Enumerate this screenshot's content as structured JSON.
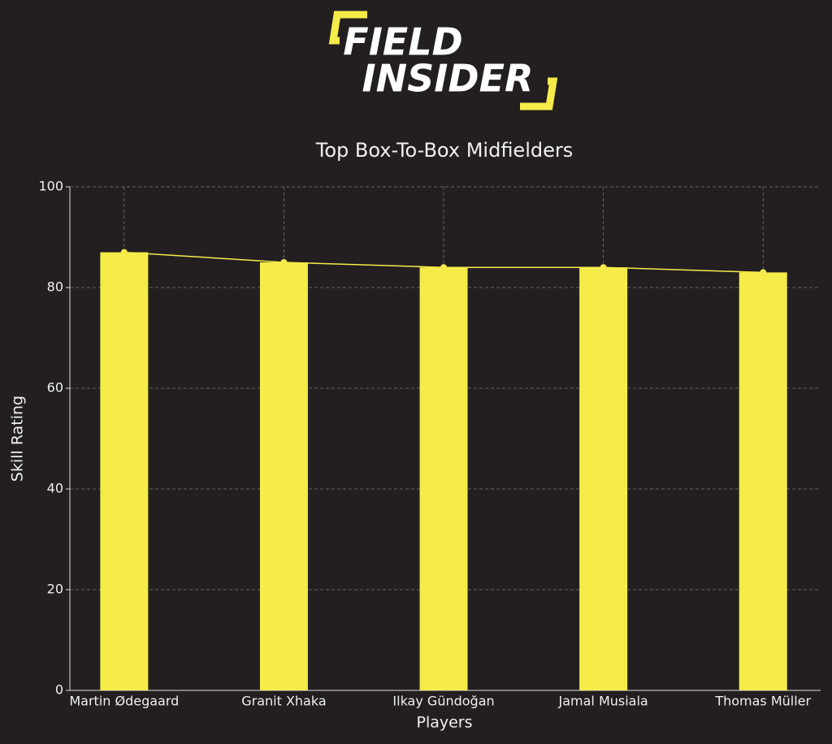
{
  "logo": [
    "FIELD",
    "INSIDER"
  ],
  "chart_data": {
    "type": "bar",
    "title": "Top Box-To-Box Midfielders",
    "x_label": "Players",
    "y_label": "Skill Rating",
    "categories": [
      "Martin Ødegaard",
      "Granit Xhaka",
      "Ilkay Gündoğan",
      "Jamal Musiala",
      "Thomas Müller"
    ],
    "values": [
      87,
      85,
      84,
      84,
      83
    ],
    "color": "#f5ec4a",
    "line_overlay": true,
    "line_color": "#f5ec4a",
    "ylim": [
      0,
      100
    ],
    "yticks": [
      0,
      20,
      40,
      60,
      80,
      100
    ],
    "grid": true
  }
}
